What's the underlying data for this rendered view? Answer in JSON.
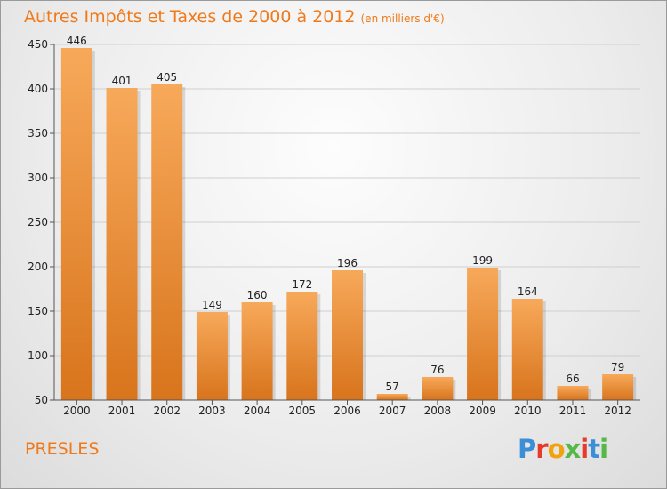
{
  "title": "Autres Impôts et Taxes de 2000 à 2012",
  "title_unit": "(en milliers d'€)",
  "town": "PRESLES",
  "brand": {
    "text": "Proxiti",
    "colors": [
      "#3a8fd6",
      "#e53b2c",
      "#f2a20f",
      "#56b847",
      "#e53b2c",
      "#3a8fd6",
      "#56b847"
    ]
  },
  "colors": {
    "title": "#f07a1a",
    "bar_top": "#f7a95a",
    "bar_bottom": "#d8741c"
  },
  "chart_data": {
    "type": "bar",
    "title": "Autres Impôts et Taxes de 2000 à 2012",
    "ylabel": "",
    "xlabel": "",
    "categories": [
      "2000",
      "2001",
      "2002",
      "2003",
      "2004",
      "2005",
      "2006",
      "2007",
      "2008",
      "2009",
      "2010",
      "2011",
      "2012"
    ],
    "values": [
      446,
      401,
      405,
      149,
      160,
      172,
      196,
      57,
      76,
      199,
      164,
      66,
      79
    ],
    "ylim": [
      50,
      450
    ],
    "yticks": [
      50,
      100,
      150,
      200,
      250,
      300,
      350,
      400,
      450
    ],
    "grid": true,
    "legend": "none"
  }
}
